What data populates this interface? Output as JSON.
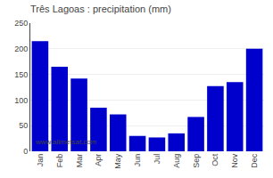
{
  "chart_data": {
    "type": "bar",
    "title": "Três Lagoas : precipitation (mm)",
    "categories": [
      "Jan",
      "Feb",
      "Mar",
      "Apr",
      "May",
      "Jun",
      "Jul",
      "Aug",
      "Sep",
      "Oct",
      "Nov",
      "Dec"
    ],
    "values": [
      215,
      165,
      142,
      85,
      72,
      30,
      27,
      35,
      67,
      127,
      135,
      200
    ],
    "color": "#0000cc",
    "ylim": [
      0,
      250
    ],
    "yticks": [
      0,
      50,
      100,
      150,
      200,
      250
    ],
    "grid": true,
    "annotations": [
      {
        "text": "www.allmetsat.com"
      }
    ]
  }
}
